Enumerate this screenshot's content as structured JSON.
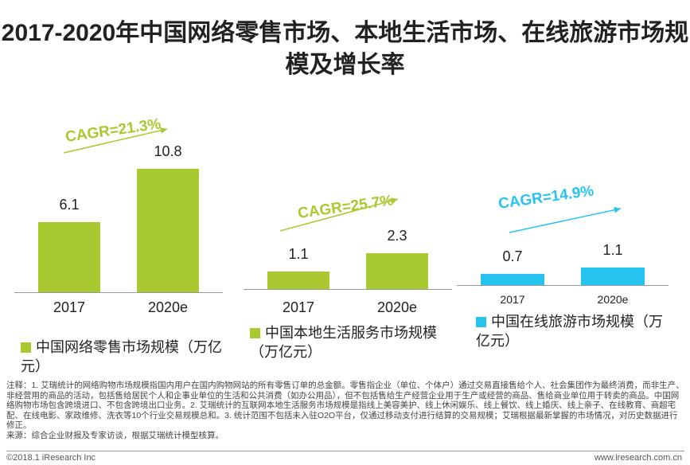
{
  "title": "2017-2020年中国网络零售市场、本地生活市场、在线旅游市场规模及增长率",
  "colors": {
    "green": "#a8c92f",
    "blue": "#27c3ef"
  },
  "chart_data": [
    {
      "type": "bar",
      "categories": [
        "2017",
        "2020e"
      ],
      "values": [
        6.1,
        10.8
      ],
      "series_name": "中国网络零售市场规模（万亿元）",
      "annotation": "CAGR=21.3%",
      "color": "#a8c92f"
    },
    {
      "type": "bar",
      "categories": [
        "2017",
        "2020e"
      ],
      "values": [
        1.1,
        2.3
      ],
      "series_name": "中国本地生活服务市场规模（万亿元）",
      "annotation": "CAGR=25.7%",
      "color": "#a8c92f"
    },
    {
      "type": "bar",
      "categories": [
        "2017",
        "2020e"
      ],
      "values": [
        0.7,
        1.1
      ],
      "series_name": "中国在线旅游市场规模（万亿元）",
      "annotation": "CAGR=14.9%",
      "color": "#27c3ef"
    }
  ],
  "notes": "注释：1. 艾瑞统计的网络购物市场规模指国内用户在国内购物网站的所有零售订单的总金额。零售指企业（单位、个体户）通过交易直接售给个人、社会集团作为最终消费，而非生产、非经营用的商品的活动，包括售给居民个人和企事业单位的生活和公共消费（如办公用品），但不包括售给生产经营企业用于生产或经营的商品、售给商业单位用于转卖的商品。中国网络购物市场包含跨境进口、不包含跨境出口业务。2. 艾瑞统计的互联网本地生活服务市场规模是指线上美容美护、线上休闲娱乐、线上餐饮、线上婚庆、线上亲子、在线教育、商超宅配、在线电影、家政维修、洗衣等10个行业交易规模总和。3. 统计范围不包括未入驻O2O平台，仅通过移动支付进行结算的交易规模；艾瑞根据最新掌握的市场情况，对历史数据进行修正。",
  "source": "来源：综合企业财报及专家访谈，根据艾瑞统计模型核算。",
  "copyright": "©2018.1 iResearch Inc",
  "website": "www.iresearch.com.cn"
}
